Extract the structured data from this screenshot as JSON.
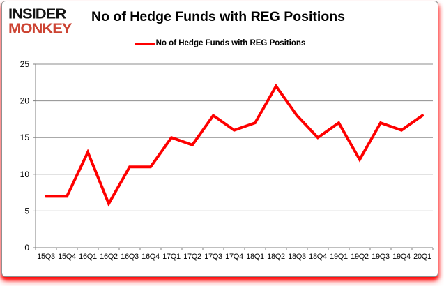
{
  "logo": {
    "line1": "INSIDER",
    "line2": "MONKEY"
  },
  "header": {
    "title": "No of Hedge Funds with REG Positions"
  },
  "legend": {
    "label": "No of Hedge Funds with REG Positions"
  },
  "colors": {
    "line": "#fe0000",
    "logo_black": "#141414",
    "logo_red": "#cc4332",
    "grid": "#8e8e8e",
    "axis": "#7f7f7f",
    "label_text": "#000000",
    "card_border": "#8f8f8f",
    "shadow": "#ff0000"
  },
  "chart_data": {
    "type": "line",
    "title": "No of Hedge Funds with REG Positions",
    "categories": [
      "15Q3",
      "15Q4",
      "16Q1",
      "16Q2",
      "16Q3",
      "16Q4",
      "17Q1",
      "17Q2",
      "17Q3",
      "17Q4",
      "18Q1",
      "18Q2",
      "18Q3",
      "18Q4",
      "19Q1",
      "19Q2",
      "19Q3",
      "19Q4",
      "20Q1"
    ],
    "series": [
      {
        "name": "No of Hedge Funds with REG Positions",
        "values": [
          7,
          7,
          13,
          6,
          11,
          11,
          15,
          14,
          18,
          16,
          17,
          22,
          18,
          15,
          17,
          12,
          17,
          16,
          18
        ]
      }
    ],
    "xlabel": "",
    "ylabel": "",
    "ylim": [
      0,
      25
    ],
    "ytick_step": 5,
    "grid": true,
    "legend_position": "top-center"
  }
}
